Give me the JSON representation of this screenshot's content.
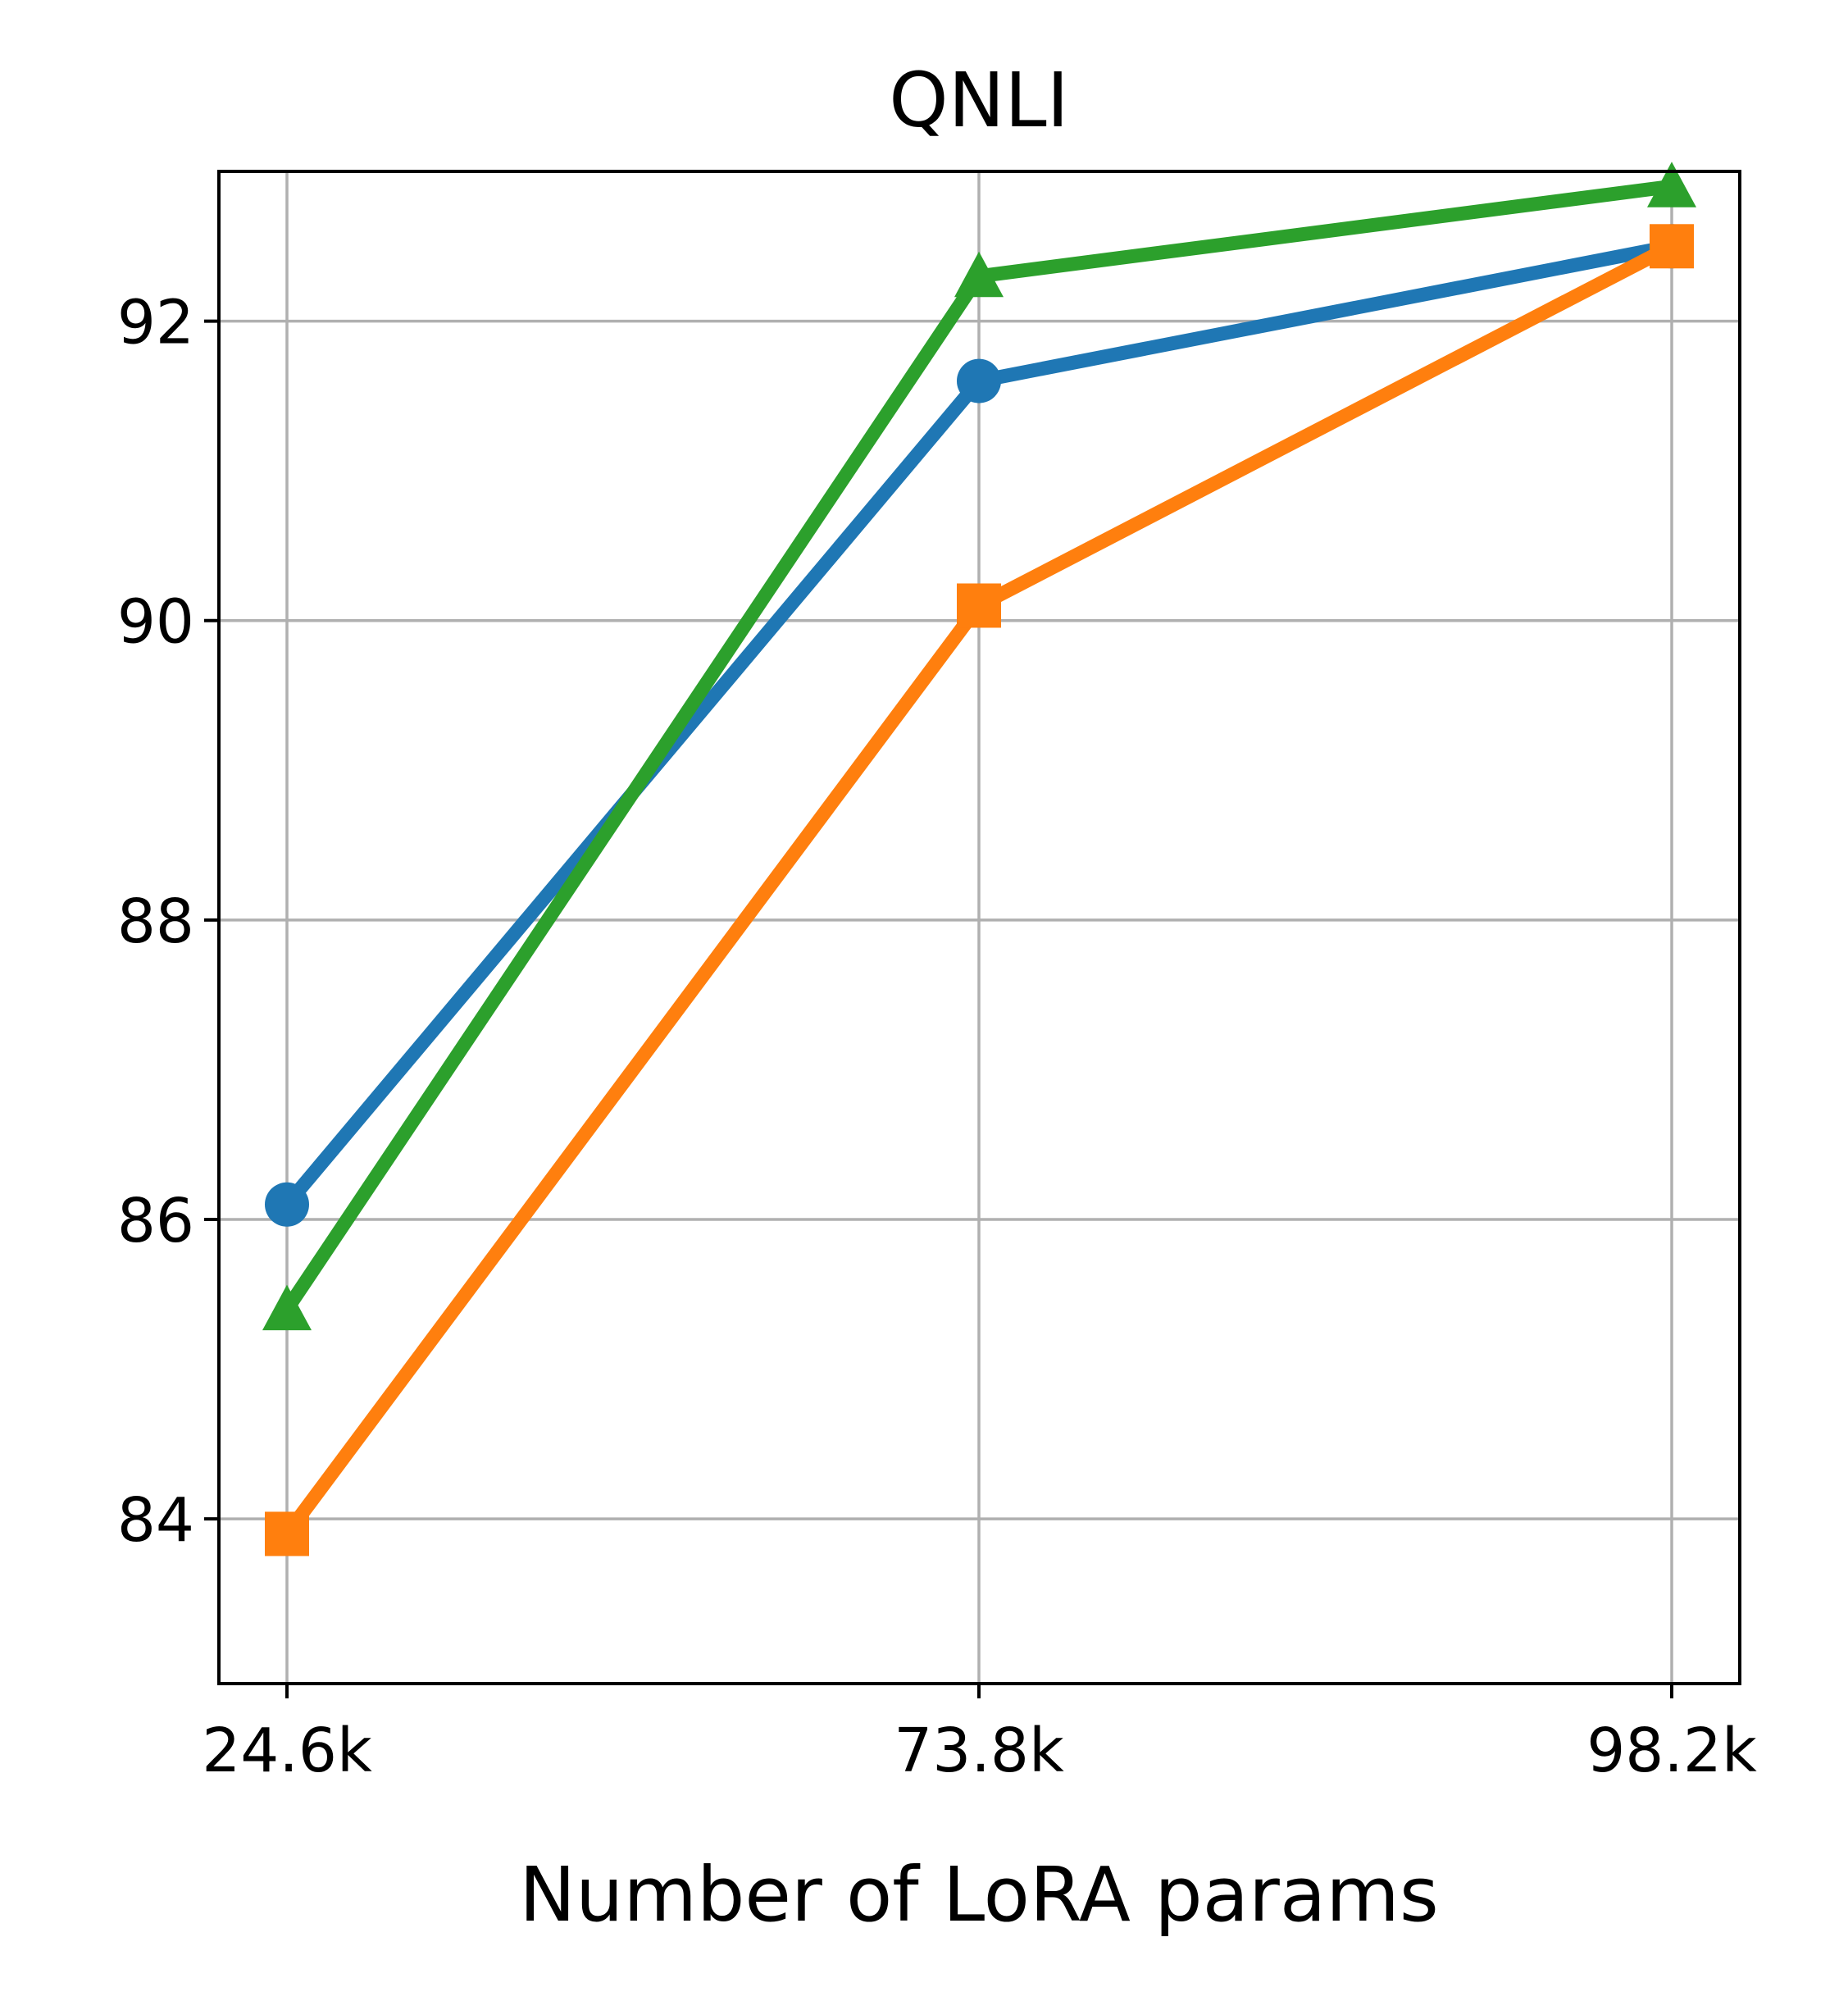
{
  "chart_data": {
    "type": "line",
    "title": "QNLI",
    "xlabel": "Number of LoRA params",
    "ylabel": "",
    "categories": [
      "24.6k",
      "73.8k",
      "98.2k"
    ],
    "yticks": [
      "84",
      "86",
      "88",
      "90",
      "92"
    ],
    "ylim": [
      82.9,
      93.0
    ],
    "grid": true,
    "legend": "none",
    "series": [
      {
        "color": "#1f77b4",
        "marker": "circle",
        "values": [
          86.1,
          91.6,
          92.5
        ]
      },
      {
        "color": "#ff7f0e",
        "marker": "square",
        "values": [
          83.9,
          90.1,
          92.5
        ]
      },
      {
        "color": "#2ca02c",
        "marker": "triangle",
        "values": [
          85.4,
          92.3,
          92.9
        ]
      }
    ]
  }
}
